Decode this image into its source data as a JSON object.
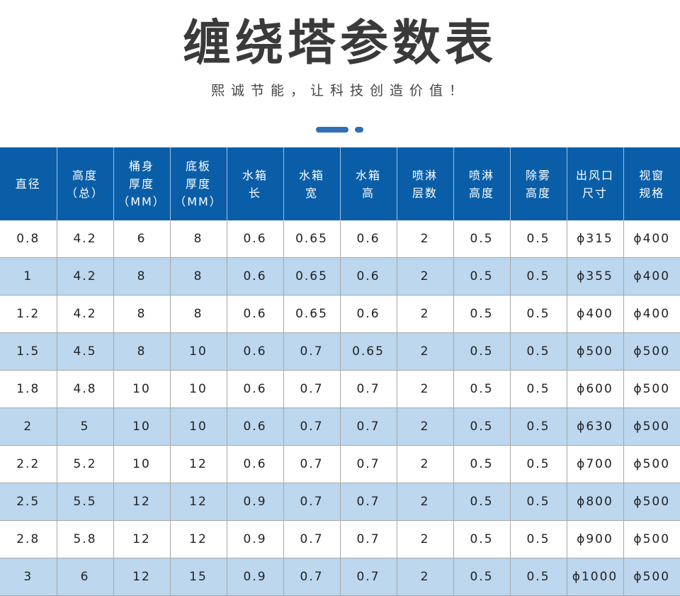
{
  "title": "缠绕塔参数表",
  "subtitle": "熙诚节能，让科技创造价值！",
  "colors": {
    "header_bg": "#0a5ea8",
    "alt_row_bg": "#bcd7ee",
    "accent": "#2e6fb5"
  },
  "table": {
    "headers": [
      "直径",
      "高度\n（总）",
      "桶身\n厚度\n（MM）",
      "底板\n厚度\n（MM）",
      "水箱\n长",
      "水箱\n宽",
      "水箱\n高",
      "喷淋\n层数",
      "喷淋\n高度",
      "除雾\n高度",
      "出风口\n尺寸",
      "视窗\n规格"
    ],
    "rows": [
      [
        "0.8",
        "4.2",
        "6",
        "8",
        "0.6",
        "0.65",
        "0.6",
        "2",
        "0.5",
        "0.5",
        "ϕ315",
        "ϕ400"
      ],
      [
        "1",
        "4.2",
        "8",
        "8",
        "0.6",
        "0.65",
        "0.6",
        "2",
        "0.5",
        "0.5",
        "ϕ355",
        "ϕ400"
      ],
      [
        "1.2",
        "4.2",
        "8",
        "8",
        "0.6",
        "0.65",
        "0.6",
        "2",
        "0.5",
        "0.5",
        "ϕ400",
        "ϕ400"
      ],
      [
        "1.5",
        "4.5",
        "8",
        "10",
        "0.6",
        "0.7",
        "0.65",
        "2",
        "0.5",
        "0.5",
        "ϕ500",
        "ϕ500"
      ],
      [
        "1.8",
        "4.8",
        "10",
        "10",
        "0.6",
        "0.7",
        "0.7",
        "2",
        "0.5",
        "0.5",
        "ϕ600",
        "ϕ500"
      ],
      [
        "2",
        "5",
        "10",
        "10",
        "0.6",
        "0.7",
        "0.7",
        "2",
        "0.5",
        "0.5",
        "ϕ630",
        "ϕ500"
      ],
      [
        "2.2",
        "5.2",
        "10",
        "12",
        "0.6",
        "0.7",
        "0.7",
        "2",
        "0.5",
        "0.5",
        "ϕ700",
        "ϕ500"
      ],
      [
        "2.5",
        "5.5",
        "12",
        "12",
        "0.9",
        "0.7",
        "0.7",
        "2",
        "0.5",
        "0.5",
        "ϕ800",
        "ϕ500"
      ],
      [
        "2.8",
        "5.8",
        "12",
        "12",
        "0.9",
        "0.7",
        "0.7",
        "2",
        "0.5",
        "0.5",
        "ϕ900",
        "ϕ500"
      ],
      [
        "3",
        "6",
        "12",
        "15",
        "0.9",
        "0.7",
        "0.7",
        "2",
        "0.5",
        "0.5",
        "ϕ1000",
        "ϕ500"
      ]
    ]
  }
}
